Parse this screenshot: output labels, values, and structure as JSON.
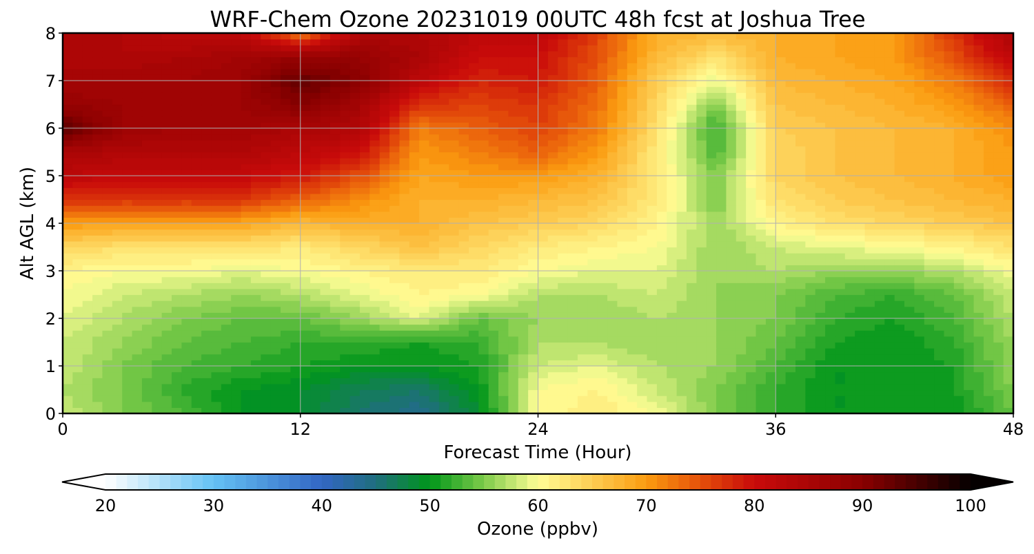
{
  "chart_data": {
    "type": "heatmap",
    "title": "WRF-Chem Ozone  20231019 00UTC 48h fcst at Joshua Tree",
    "xlabel": "Forecast Time (Hour)",
    "ylabel": "Alt AGL (km)",
    "xlim": [
      0,
      48
    ],
    "ylim": [
      0,
      8
    ],
    "x_ticks": [
      0,
      12,
      24,
      36,
      48
    ],
    "y_ticks": [
      0,
      1,
      2,
      3,
      4,
      5,
      6,
      7,
      8
    ],
    "grid": true,
    "z_label": "Ozone  (ppbv)",
    "z_range": [
      20,
      100
    ],
    "colorbar_ticks": [
      20,
      30,
      40,
      50,
      60,
      70,
      80,
      90,
      100
    ],
    "colorbar_extend": "both",
    "colorscale": [
      [
        20,
        "#ffffff"
      ],
      [
        30,
        "#64c2f4"
      ],
      [
        40,
        "#3366c4"
      ],
      [
        45,
        "#1f6e7e"
      ],
      [
        50,
        "#00961a"
      ],
      [
        55,
        "#7ecb4a"
      ],
      [
        60,
        "#fffe96"
      ],
      [
        70,
        "#fb9c10"
      ],
      [
        75,
        "#e5500a"
      ],
      [
        80,
        "#c90a0a"
      ],
      [
        90,
        "#8a0000"
      ],
      [
        100,
        "#050000"
      ]
    ],
    "x": [
      0,
      3,
      6,
      9,
      12,
      15,
      18,
      21,
      24,
      27,
      30,
      33,
      36,
      39,
      42,
      45,
      48
    ],
    "y": [
      0,
      0.5,
      1,
      1.5,
      2,
      2.5,
      3,
      3.5,
      4,
      4.5,
      5,
      5.5,
      6,
      6.5,
      7,
      7.5,
      8
    ],
    "z": [
      [
        58,
        55,
        53,
        50,
        49,
        46,
        44,
        49,
        60,
        62,
        60,
        55,
        52,
        50,
        50,
        50,
        54
      ],
      [
        57,
        55,
        52,
        50,
        49,
        47,
        46,
        50,
        60,
        61,
        58,
        55,
        52,
        50,
        50,
        51,
        55
      ],
      [
        58,
        55,
        53,
        52,
        51,
        50,
        50,
        51,
        58,
        59,
        57,
        56,
        53,
        50,
        50,
        51,
        56
      ],
      [
        58,
        56,
        54,
        53,
        52,
        52,
        51,
        52,
        57,
        57,
        56,
        56,
        54,
        51,
        50,
        52,
        56
      ],
      [
        59,
        57,
        55,
        54,
        54,
        56,
        59,
        54,
        56,
        56,
        57,
        56,
        55,
        52,
        51,
        53,
        57
      ],
      [
        60,
        58,
        57,
        56,
        57,
        59,
        61,
        60,
        57,
        57,
        58,
        56,
        55,
        53,
        52,
        54,
        58
      ],
      [
        61,
        60,
        60,
        59,
        60,
        61,
        62,
        62,
        60,
        59,
        59,
        56,
        57,
        56,
        56,
        57,
        60
      ],
      [
        64,
        63,
        63,
        63,
        62,
        64,
        66,
        64,
        62,
        61,
        60,
        56,
        58,
        59,
        60,
        61,
        63
      ],
      [
        70,
        69,
        69,
        69,
        67,
        68,
        68,
        66,
        65,
        64,
        61,
        56,
        61,
        63,
        64,
        65,
        66
      ],
      [
        77,
        77,
        77,
        77,
        74,
        71,
        68,
        68,
        67,
        66,
        62,
        55,
        63,
        65,
        66,
        67,
        68
      ],
      [
        82,
        81,
        81,
        81,
        79,
        75,
        69,
        70,
        70,
        68,
        62,
        55,
        64,
        66,
        67,
        68,
        70
      ],
      [
        85,
        84,
        84,
        84,
        82,
        80,
        70,
        72,
        74,
        70,
        62,
        53,
        64,
        66,
        67,
        68,
        70
      ],
      [
        94,
        87,
        86,
        86,
        85,
        84,
        72,
        74,
        76,
        72,
        63,
        52,
        65,
        66,
        67,
        68,
        71
      ],
      [
        88,
        87,
        87,
        87,
        90,
        86,
        77,
        76,
        77,
        73,
        64,
        55,
        66,
        67,
        68,
        70,
        74
      ],
      [
        86,
        86,
        86,
        87,
        93,
        90,
        82,
        78,
        79,
        74,
        65,
        59,
        67,
        68,
        69,
        72,
        78
      ],
      [
        84,
        84,
        85,
        86,
        88,
        88,
        85,
        80,
        80,
        75,
        67,
        63,
        68,
        69,
        70,
        75,
        82
      ],
      [
        84,
        84,
        82,
        82,
        72,
        84,
        84,
        82,
        82,
        76,
        68,
        67,
        68,
        69,
        70,
        77,
        85
      ]
    ]
  }
}
